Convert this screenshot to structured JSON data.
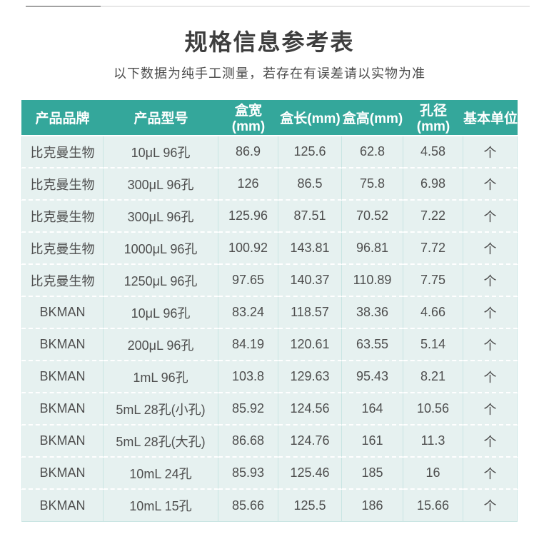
{
  "page": {
    "title": "规格信息参考表",
    "subtitle": "以下数据为纯手工测量，若存在有误差请以实物为准"
  },
  "table": {
    "headers": [
      "产品品牌",
      "产品型号",
      "盒宽(mm)",
      "盒长(mm)",
      "盒高(mm)",
      "孔径(mm)",
      "基本单位"
    ],
    "rows": [
      [
        "比克曼生物",
        "10μL 96孔",
        "86.9",
        "125.6",
        "62.8",
        "4.58",
        "个"
      ],
      [
        "比克曼生物",
        "300μL 96孔",
        "126",
        "86.5",
        "75.8",
        "6.98",
        "个"
      ],
      [
        "比克曼生物",
        "300μL 96孔",
        "125.96",
        "87.51",
        "70.52",
        "7.22",
        "个"
      ],
      [
        "比克曼生物",
        "1000μL 96孔",
        "100.92",
        "143.81",
        "96.81",
        "7.72",
        "个"
      ],
      [
        "比克曼生物",
        "1250μL 96孔",
        "97.65",
        "140.37",
        "110.89",
        "7.75",
        "个"
      ],
      [
        "BKMAN",
        "10μL 96孔",
        "83.24",
        "118.57",
        "38.36",
        "4.66",
        "个"
      ],
      [
        "BKMAN",
        "200μL 96孔",
        "84.19",
        "120.61",
        "63.55",
        "5.14",
        "个"
      ],
      [
        "BKMAN",
        "1mL 96孔",
        "103.8",
        "129.63",
        "95.43",
        "8.21",
        "个"
      ],
      [
        "BKMAN",
        "5mL 28孔(小孔)",
        "85.92",
        "124.56",
        "164",
        "10.56",
        "个"
      ],
      [
        "BKMAN",
        "5mL 28孔(大孔)",
        "86.68",
        "124.76",
        "161",
        "11.3",
        "个"
      ],
      [
        "BKMAN",
        "10mL 24孔",
        "85.93",
        "125.46",
        "185",
        "16",
        "个"
      ],
      [
        "BKMAN",
        "10mL 15孔",
        "85.66",
        "125.5",
        "186",
        "15.66",
        "个"
      ]
    ]
  },
  "colors": {
    "header_bg": "#34a79b",
    "header_text": "#ffffff",
    "row_bg": "#e6f1f0",
    "cell_text": "#4e4e4e",
    "column_separator": "#c9e5e3",
    "row_separator": "#ffffff",
    "title_text": "#3e3e3e",
    "subtitle_text": "#4b4b4b",
    "top_divider_light": "#e7e7e7",
    "top_divider_dark": "#a2a2a2"
  }
}
